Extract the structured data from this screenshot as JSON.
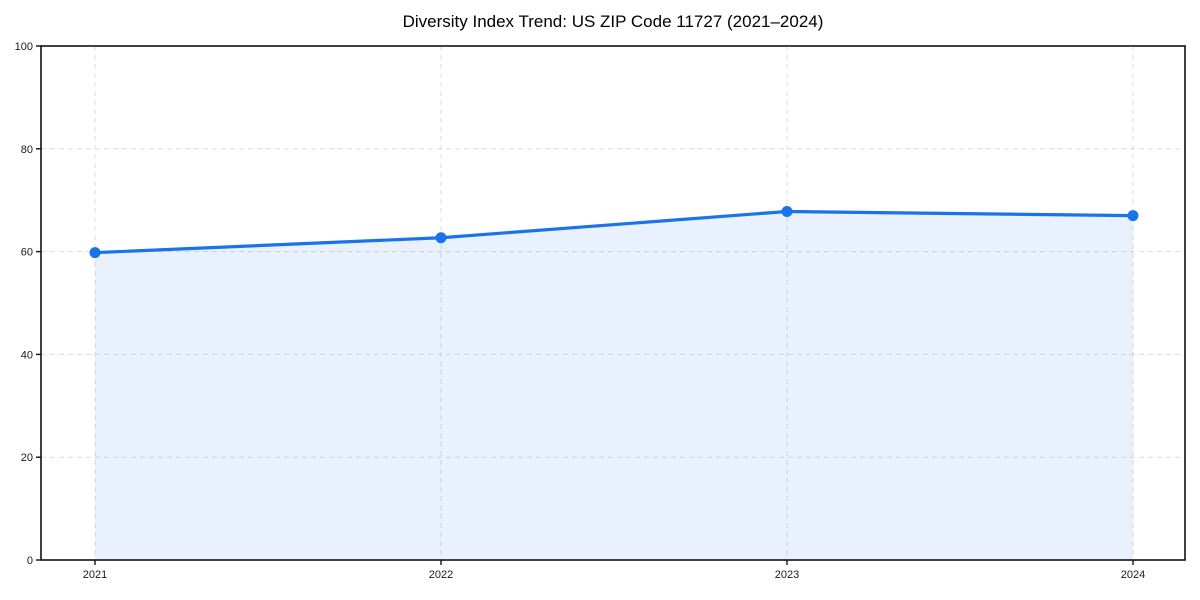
{
  "chart_data": {
    "type": "area",
    "title": "Diversity Index Trend: US ZIP Code 11727 (2021–2024)",
    "categories": [
      "2021",
      "2022",
      "2023",
      "2024"
    ],
    "series": [
      {
        "name": "Diversity Index",
        "values": [
          59.8,
          62.7,
          67.8,
          67.0
        ]
      }
    ],
    "xlabel": "",
    "ylabel": "",
    "ylim": [
      0,
      100
    ],
    "yticks": [
      0,
      20,
      40,
      60,
      80,
      100
    ],
    "grid": true,
    "grid_style": "dashed",
    "legend": false,
    "colors": {
      "line": "#1a73e8",
      "marker": "#1a73e8",
      "fill": "rgba(26,115,232,0.10)",
      "grid": "#dcdcdc",
      "axis": "#111111",
      "tick_label": "#1a1a1a",
      "title": "#000000",
      "background": "#ffffff"
    }
  }
}
